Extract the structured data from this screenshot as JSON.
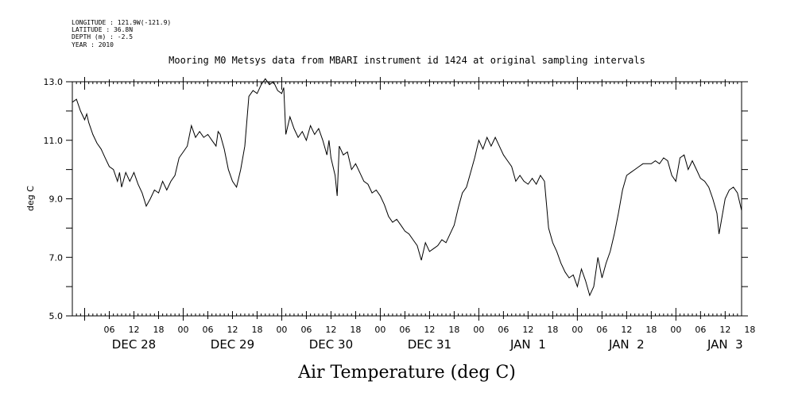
{
  "header": {
    "longitude": "LONGITUDE : 121.9W(-121.9)",
    "latitude": "LATITUDE : 36.8N",
    "depth": "DEPTH (m) : -2.5",
    "year": "YEAR : 2010"
  },
  "chart_data": {
    "type": "line",
    "title": "Mooring M0 Metsys data from MBARI instrument id 1424 at original sampling intervals",
    "xlabel": "Air Temperature (deg C)",
    "ylabel": "deg C",
    "ylim": [
      5.0,
      13.0
    ],
    "y_ticks": [
      "5.0",
      "7.0",
      "9.0",
      "11.0",
      "13.0"
    ],
    "x_hour_ticks": [
      "06",
      "12",
      "18",
      "00",
      "06",
      "12",
      "18",
      "00",
      "06",
      "12",
      "18",
      "00",
      "06",
      "12",
      "18",
      "00",
      "06",
      "12",
      "18",
      "00",
      "06",
      "12",
      "18",
      "00",
      "06",
      "12",
      "18"
    ],
    "x_day_labels": [
      "DEC 28",
      "DEC 29",
      "DEC 30",
      "DEC 31",
      "JAN  1",
      "JAN  2",
      "JAN  3"
    ],
    "x_unit": "hours since 2010-12-28 00:00",
    "xlim": [
      -3,
      160
    ],
    "series": [
      {
        "values": [
          [
            -3,
            12.3
          ],
          [
            -2,
            12.4
          ],
          [
            -1,
            12.0
          ],
          [
            0,
            11.7
          ],
          [
            0.5,
            11.9
          ],
          [
            1,
            11.6
          ],
          [
            2,
            11.2
          ],
          [
            3,
            10.9
          ],
          [
            4,
            10.7
          ],
          [
            5,
            10.4
          ],
          [
            6,
            10.1
          ],
          [
            7,
            10.0
          ],
          [
            8,
            9.6
          ],
          [
            8.5,
            9.9
          ],
          [
            9,
            9.4
          ],
          [
            10,
            9.9
          ],
          [
            11,
            9.6
          ],
          [
            12,
            9.9
          ],
          [
            13,
            9.5
          ],
          [
            14,
            9.2
          ],
          [
            15,
            8.75
          ],
          [
            16,
            9.0
          ],
          [
            17,
            9.3
          ],
          [
            18,
            9.2
          ],
          [
            19,
            9.6
          ],
          [
            20,
            9.3
          ],
          [
            21,
            9.6
          ],
          [
            22,
            9.8
          ],
          [
            23,
            10.4
          ],
          [
            24,
            10.6
          ],
          [
            25,
            10.8
          ],
          [
            26,
            11.5
          ],
          [
            27,
            11.1
          ],
          [
            28,
            11.3
          ],
          [
            29,
            11.1
          ],
          [
            30,
            11.2
          ],
          [
            31,
            11.0
          ],
          [
            32,
            10.8
          ],
          [
            32.5,
            11.3
          ],
          [
            33,
            11.2
          ],
          [
            34,
            10.7
          ],
          [
            35,
            10.0
          ],
          [
            36,
            9.6
          ],
          [
            37,
            9.4
          ],
          [
            38,
            10.0
          ],
          [
            39,
            10.8
          ],
          [
            40,
            12.5
          ],
          [
            41,
            12.7
          ],
          [
            42,
            12.6
          ],
          [
            43,
            12.9
          ],
          [
            44,
            13.1
          ],
          [
            45,
            12.9
          ],
          [
            46,
            13.0
          ],
          [
            47,
            12.7
          ],
          [
            48,
            12.6
          ],
          [
            48.5,
            12.8
          ],
          [
            49,
            11.2
          ],
          [
            50,
            11.8
          ],
          [
            51,
            11.4
          ],
          [
            52,
            11.1
          ],
          [
            53,
            11.3
          ],
          [
            54,
            11.0
          ],
          [
            55,
            11.5
          ],
          [
            56,
            11.2
          ],
          [
            57,
            11.4
          ],
          [
            58,
            11.0
          ],
          [
            59,
            10.5
          ],
          [
            59.5,
            11.0
          ],
          [
            60,
            10.4
          ],
          [
            61,
            9.8
          ],
          [
            61.5,
            9.1
          ],
          [
            62,
            10.8
          ],
          [
            63,
            10.5
          ],
          [
            64,
            10.6
          ],
          [
            65,
            10.0
          ],
          [
            66,
            10.2
          ],
          [
            67,
            9.9
          ],
          [
            68,
            9.6
          ],
          [
            69,
            9.5
          ],
          [
            70,
            9.2
          ],
          [
            71,
            9.3
          ],
          [
            72,
            9.1
          ],
          [
            73,
            8.8
          ],
          [
            74,
            8.4
          ],
          [
            75,
            8.2
          ],
          [
            76,
            8.3
          ],
          [
            77,
            8.1
          ],
          [
            78,
            7.9
          ],
          [
            79,
            7.8
          ],
          [
            80,
            7.6
          ],
          [
            81,
            7.4
          ],
          [
            82,
            6.9
          ],
          [
            83,
            7.5
          ],
          [
            84,
            7.2
          ],
          [
            85,
            7.3
          ],
          [
            86,
            7.4
          ],
          [
            87,
            7.6
          ],
          [
            88,
            7.5
          ],
          [
            89,
            7.8
          ],
          [
            90,
            8.1
          ],
          [
            91,
            8.7
          ],
          [
            92,
            9.2
          ],
          [
            93,
            9.4
          ],
          [
            94,
            9.9
          ],
          [
            95,
            10.4
          ],
          [
            96,
            11.0
          ],
          [
            97,
            10.7
          ],
          [
            98,
            11.1
          ],
          [
            99,
            10.8
          ],
          [
            100,
            11.1
          ],
          [
            101,
            10.8
          ],
          [
            102,
            10.5
          ],
          [
            103,
            10.3
          ],
          [
            104,
            10.1
          ],
          [
            105,
            9.6
          ],
          [
            106,
            9.8
          ],
          [
            107,
            9.6
          ],
          [
            108,
            9.5
          ],
          [
            109,
            9.7
          ],
          [
            110,
            9.5
          ],
          [
            111,
            9.8
          ],
          [
            112,
            9.6
          ],
          [
            113,
            8.0
          ],
          [
            114,
            7.5
          ],
          [
            115,
            7.2
          ],
          [
            116,
            6.8
          ],
          [
            117,
            6.5
          ],
          [
            118,
            6.3
          ],
          [
            119,
            6.4
          ],
          [
            120,
            6.0
          ],
          [
            121,
            6.6
          ],
          [
            122,
            6.2
          ],
          [
            123,
            5.7
          ],
          [
            124,
            6.0
          ],
          [
            125,
            7.0
          ],
          [
            126,
            6.3
          ],
          [
            127,
            6.8
          ],
          [
            128,
            7.2
          ],
          [
            129,
            7.8
          ],
          [
            130,
            8.5
          ],
          [
            131,
            9.3
          ],
          [
            132,
            9.8
          ],
          [
            133,
            9.9
          ],
          [
            134,
            10.0
          ],
          [
            135,
            10.1
          ],
          [
            136,
            10.2
          ],
          [
            137,
            10.2
          ],
          [
            138,
            10.2
          ],
          [
            139,
            10.3
          ],
          [
            140,
            10.2
          ],
          [
            141,
            10.4
          ],
          [
            142,
            10.3
          ],
          [
            143,
            9.8
          ],
          [
            144,
            9.6
          ],
          [
            145,
            10.4
          ],
          [
            146,
            10.5
          ],
          [
            147,
            10.0
          ],
          [
            148,
            10.3
          ],
          [
            149,
            10.0
          ],
          [
            150,
            9.7
          ],
          [
            151,
            9.6
          ],
          [
            152,
            9.4
          ],
          [
            153,
            9.0
          ],
          [
            154,
            8.5
          ],
          [
            154.5,
            7.8
          ],
          [
            155,
            8.2
          ],
          [
            156,
            9.0
          ],
          [
            157,
            9.3
          ],
          [
            158,
            9.4
          ],
          [
            159,
            9.2
          ],
          [
            160,
            8.6
          ]
        ]
      }
    ]
  }
}
